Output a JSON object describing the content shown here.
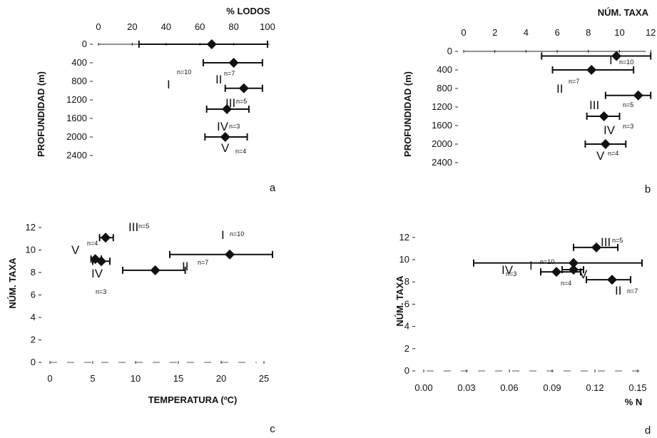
{
  "chart_data": [
    {
      "type": "scatter",
      "panel": "a",
      "xlabel": "% LODOS",
      "ylabel": "PROFUNDIDAD (m)",
      "x_ticks": [
        "0",
        "20",
        "40",
        "60",
        "80",
        "100"
      ],
      "y_ticks": [
        "0",
        "400",
        "800",
        "1200",
        "1600",
        "2000",
        "2400"
      ],
      "xlim": [
        0,
        100
      ],
      "ylim": [
        0,
        2400
      ],
      "y_inverted": true,
      "points": [
        {
          "group": "I",
          "n": "n=10",
          "x": 67,
          "y": 0,
          "xerr": [
            24,
            100
          ]
        },
        {
          "group": "II",
          "n": "n=7",
          "x": 80,
          "y": 400,
          "xerr": [
            62,
            97
          ]
        },
        {
          "group": "III",
          "n": "n=5",
          "x": 86,
          "y": 950,
          "xerr": [
            75,
            97
          ]
        },
        {
          "group": "IV",
          "n": "n=3",
          "x": 76,
          "y": 1400,
          "xerr": [
            64,
            89
          ]
        },
        {
          "group": "V",
          "n": "n=4",
          "x": 75,
          "y": 2000,
          "xerr": [
            63,
            88
          ]
        }
      ]
    },
    {
      "type": "scatter",
      "panel": "b",
      "xlabel": "NÚM. TAXA",
      "ylabel": "PROFUNDIDAD (m)",
      "x_ticks": [
        "0",
        "2",
        "4",
        "6",
        "8",
        "10",
        "12"
      ],
      "y_ticks": [
        "0",
        "400",
        "800",
        "1200",
        "1600",
        "2000",
        "2400"
      ],
      "xlim": [
        0,
        12
      ],
      "ylim": [
        0,
        2400
      ],
      "y_inverted": true,
      "points": [
        {
          "group": "I",
          "n": "n=10",
          "x": 9.8,
          "y": 100,
          "xerr": [
            5,
            12
          ]
        },
        {
          "group": "II",
          "n": "n=7",
          "x": 8.2,
          "y": 400,
          "xerr": [
            5.7,
            10.9
          ]
        },
        {
          "group": "III",
          "n": "n=5",
          "x": 11.2,
          "y": 950,
          "xerr": [
            9.1,
            12
          ]
        },
        {
          "group": "IV",
          "n": "n=3",
          "x": 9,
          "y": 1400,
          "xerr": [
            7.9,
            10
          ]
        },
        {
          "group": "V",
          "n": "n=4",
          "x": 9.1,
          "y": 2000,
          "xerr": [
            7.8,
            10.4
          ]
        }
      ]
    },
    {
      "type": "scatter",
      "panel": "c",
      "xlabel": "TEMPERATURA (ºC)",
      "ylabel": "NÚM. TAXA",
      "x_ticks": [
        "0",
        "5",
        "10",
        "15",
        "20",
        "25"
      ],
      "y_ticks": [
        "0",
        "2",
        "4",
        "6",
        "8",
        "10",
        "12"
      ],
      "xlim": [
        0,
        25
      ],
      "ylim": [
        0,
        12
      ],
      "points": [
        {
          "group": "I",
          "n": "n=10",
          "x": 21,
          "y": 9.6,
          "xerr": [
            14,
            26
          ]
        },
        {
          "group": "II",
          "n": "n=7",
          "x": 12.3,
          "y": 8.2,
          "xerr": [
            8.5,
            15.8
          ]
        },
        {
          "group": "III",
          "n": "n=5",
          "x": 6.5,
          "y": 11.1,
          "xerr": [
            5.8,
            7.4
          ]
        },
        {
          "group": "IV",
          "n": "n=3",
          "x": 6,
          "y": 9,
          "xerr": [
            5,
            7
          ]
        },
        {
          "group": "V",
          "n": "n=4",
          "x": 5.3,
          "y": 9.2,
          "xerr": [
            4.8,
            6
          ]
        }
      ]
    },
    {
      "type": "scatter",
      "panel": "d",
      "xlabel": "% N",
      "ylabel": "NÚM. TAXA",
      "x_ticks": [
        "0.00",
        "0.03",
        "0.06",
        "0.09",
        "0.12",
        "0.15"
      ],
      "y_ticks": [
        "0",
        "2",
        "4",
        "6",
        "8",
        "10",
        "12"
      ],
      "xlim": [
        0,
        0.15
      ],
      "ylim": [
        0,
        12
      ],
      "points": [
        {
          "group": "I",
          "n": "n=10",
          "x": 0.105,
          "y": 9.7,
          "xerr": [
            0.035,
            0.153
          ]
        },
        {
          "group": "II",
          "n": "n=7",
          "x": 0.132,
          "y": 8.2,
          "xerr": [
            0.114,
            0.145
          ]
        },
        {
          "group": "III",
          "n": "n=5",
          "x": 0.121,
          "y": 11.1,
          "xerr": [
            0.105,
            0.136
          ]
        },
        {
          "group": "IV",
          "n": "n=3",
          "x": 0.093,
          "y": 8.9,
          "xerr": [
            0.082,
            0.11
          ]
        },
        {
          "group": "V",
          "n": "n=4",
          "x": 0.105,
          "y": 9.1,
          "xerr": [
            0.097,
            0.112
          ]
        }
      ]
    }
  ]
}
